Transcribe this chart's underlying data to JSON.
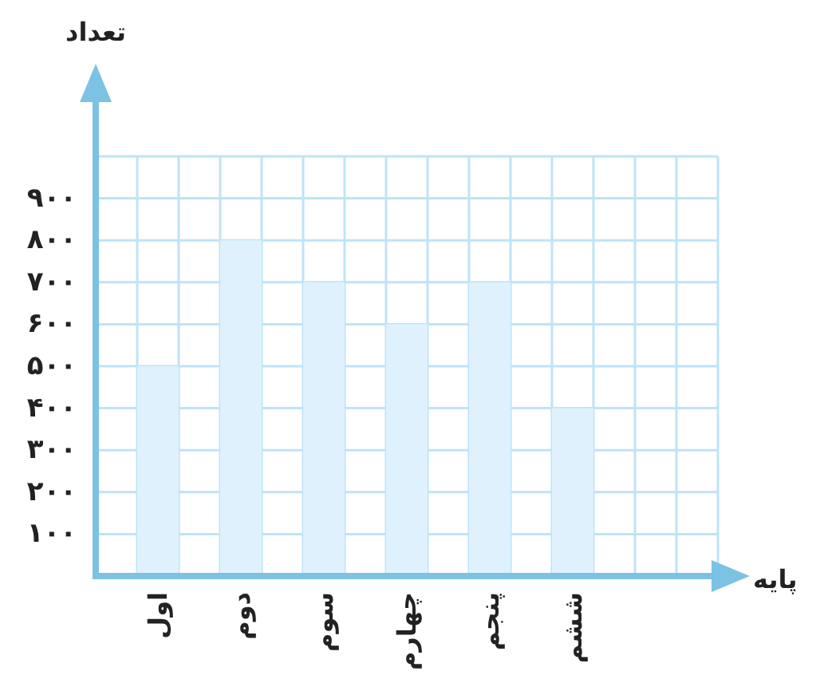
{
  "chart_data": {
    "type": "bar",
    "annotations": [
      "پایه"
    ],
    "ylabel": "تعداد",
    "categories": [
      "اول",
      "دوم",
      "سوم",
      "چهارم",
      "پنجم",
      "ششم"
    ],
    "values": [
      500,
      800,
      700,
      600,
      700,
      400
    ],
    "color": "#dff1fc",
    "ylim": [
      0,
      1000
    ],
    "yticks": [
      {
        "value": 100,
        "label": "۱۰۰"
      },
      {
        "value": 200,
        "label": "۲۰۰"
      },
      {
        "value": 300,
        "label": "۳۰۰"
      },
      {
        "value": 400,
        "label": "۴۰۰"
      },
      {
        "value": 500,
        "label": "۵۰۰"
      },
      {
        "value": 600,
        "label": "۶۰۰"
      },
      {
        "value": 700,
        "label": "۷۰۰"
      },
      {
        "value": 800,
        "label": "۸۰۰"
      },
      {
        "value": 900,
        "label": "۹۰۰"
      },
      {
        "value": 1000,
        "label": null
      }
    ],
    "grid": true
  }
}
